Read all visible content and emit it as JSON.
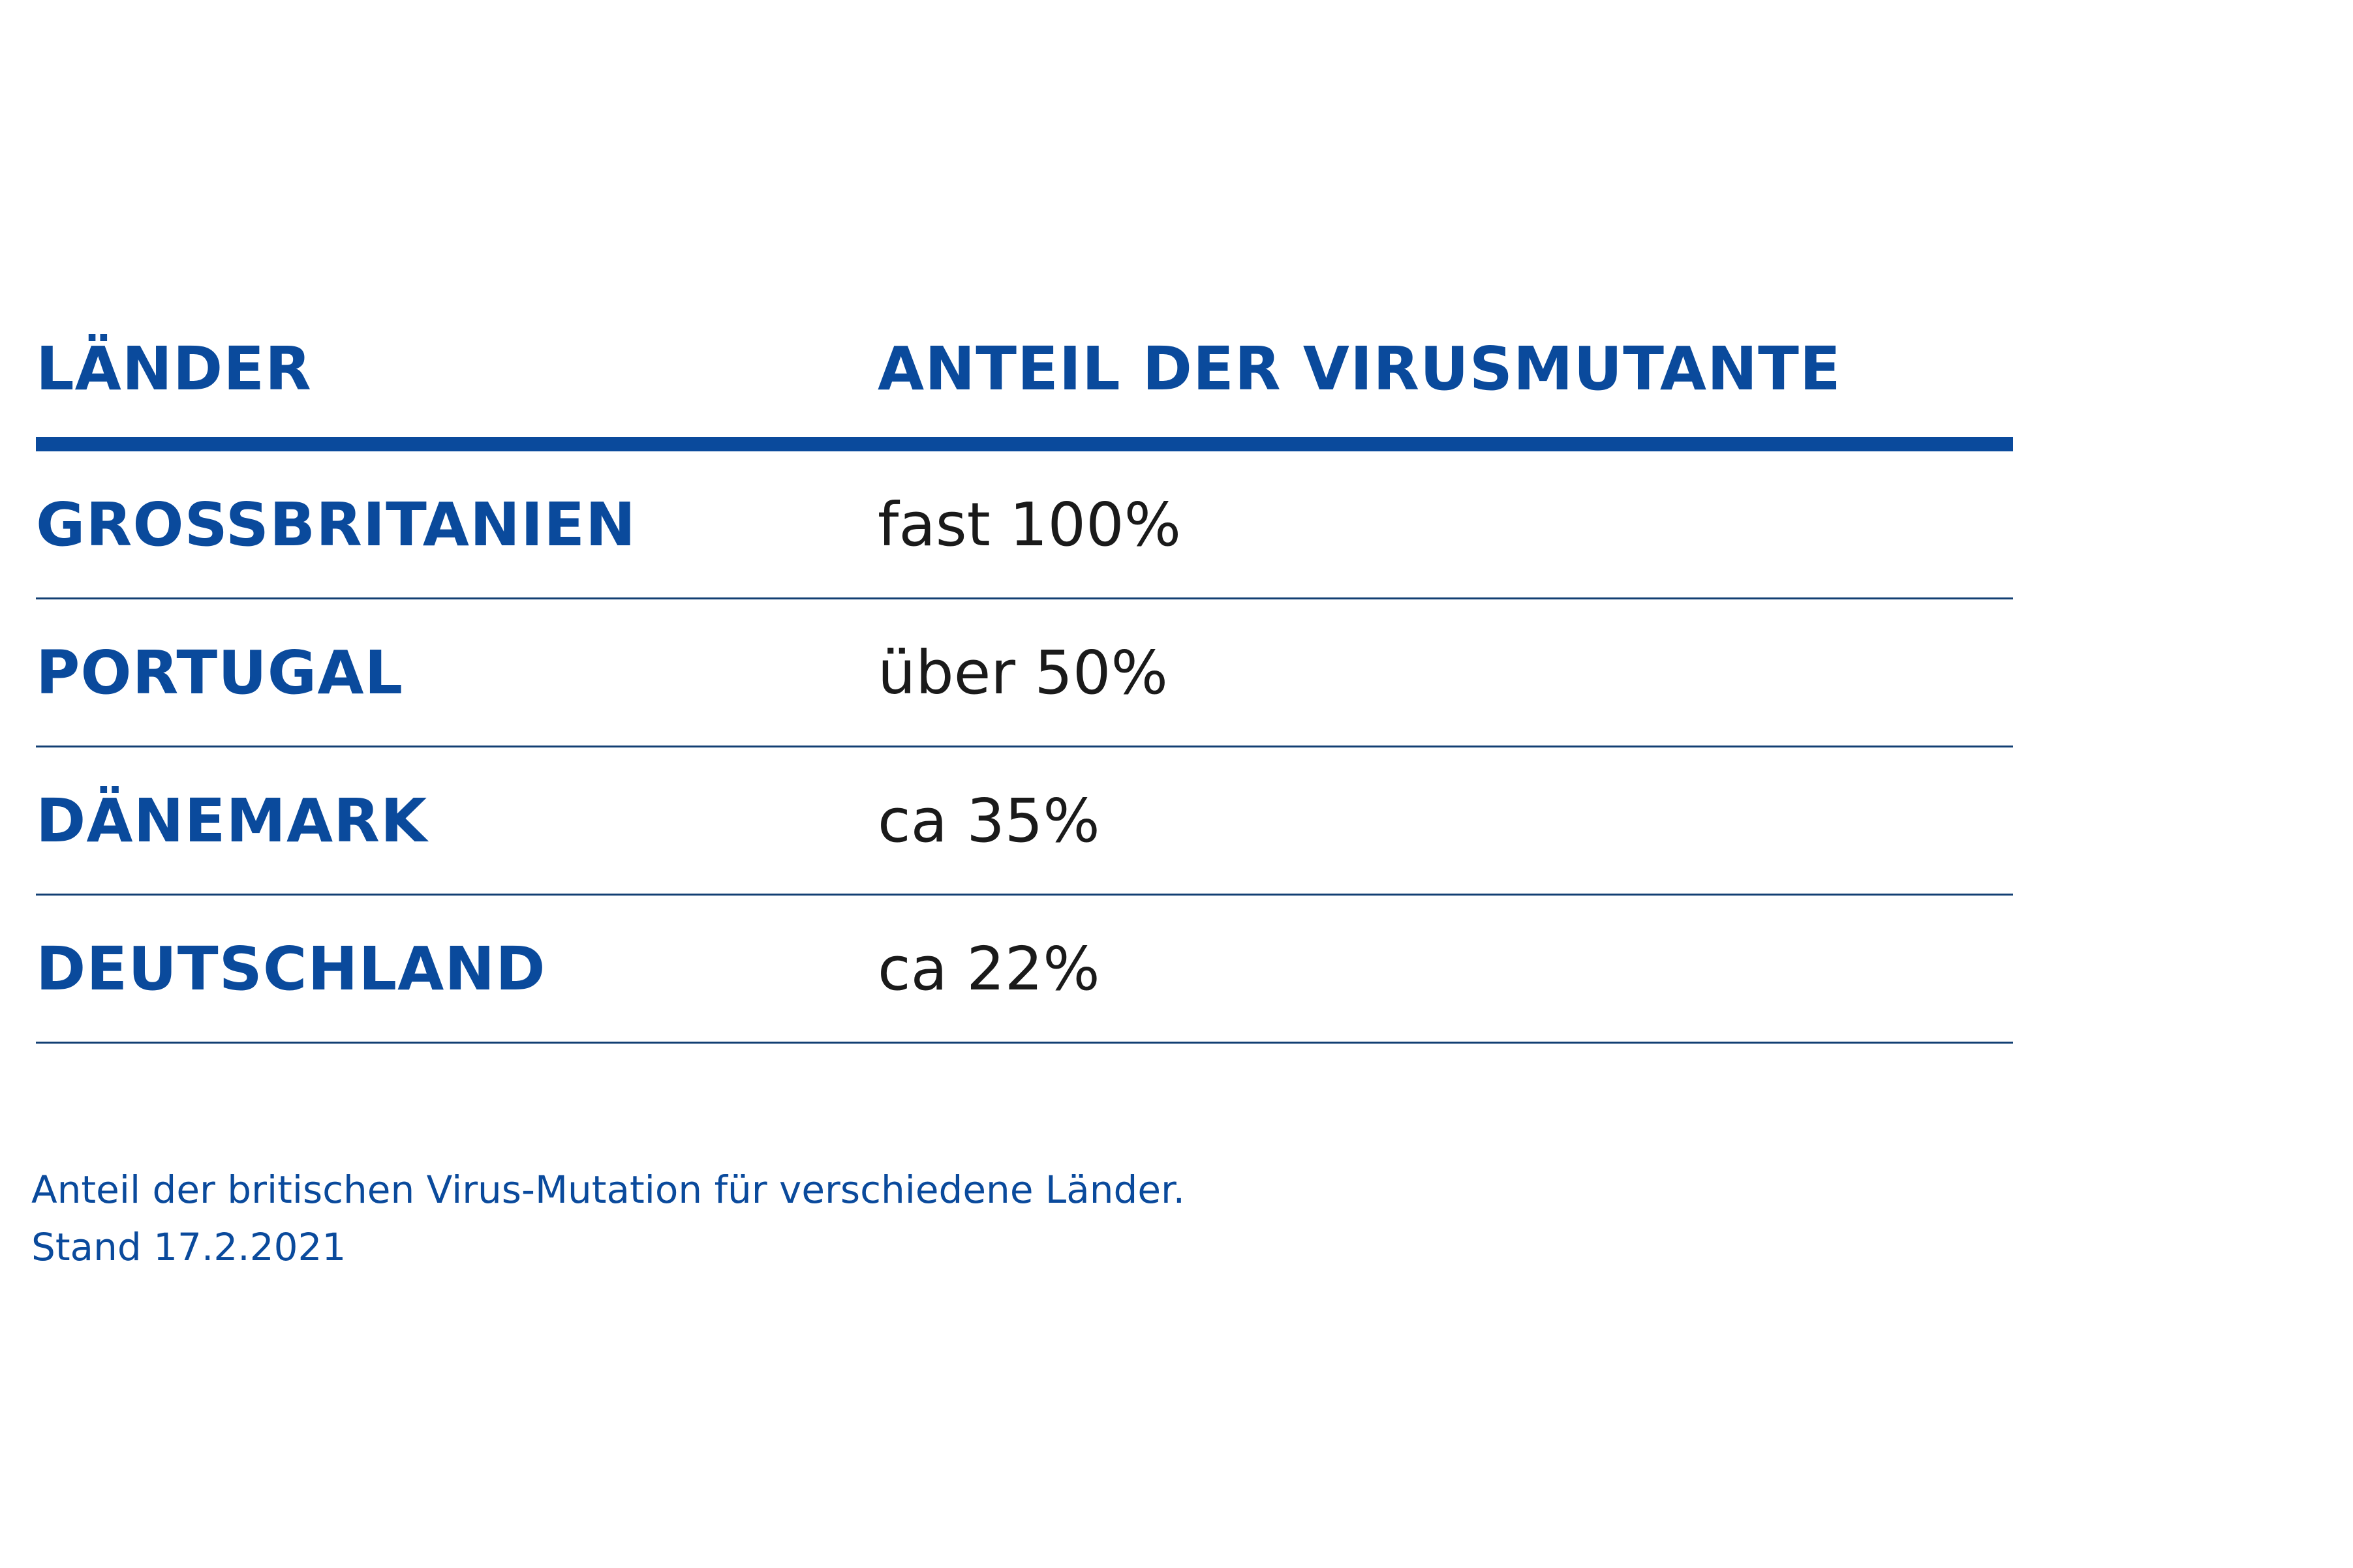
{
  "table": {
    "headers": {
      "country": "LÄNDER",
      "share": "ANTEIL DER VIRUSMUTANTE"
    },
    "rows": [
      {
        "country": "GROSSBRITANIEN",
        "share": "fast 100%"
      },
      {
        "country": "PORTUGAL",
        "share": "über 50%"
      },
      {
        "country": "DÄNEMARK",
        "share": "ca 35%"
      },
      {
        "country": "DEUTSCHLAND",
        "share": "ca 22%"
      }
    ]
  },
  "footnote": {
    "line1": "Anteil der britischen Virus-Mutation für verschiedene Länder.",
    "line2": "Stand 17.2.2021"
  },
  "colors": {
    "accent": "#0a4a9c",
    "divider": "#123f73",
    "value_text": "#1a1a1a"
  }
}
